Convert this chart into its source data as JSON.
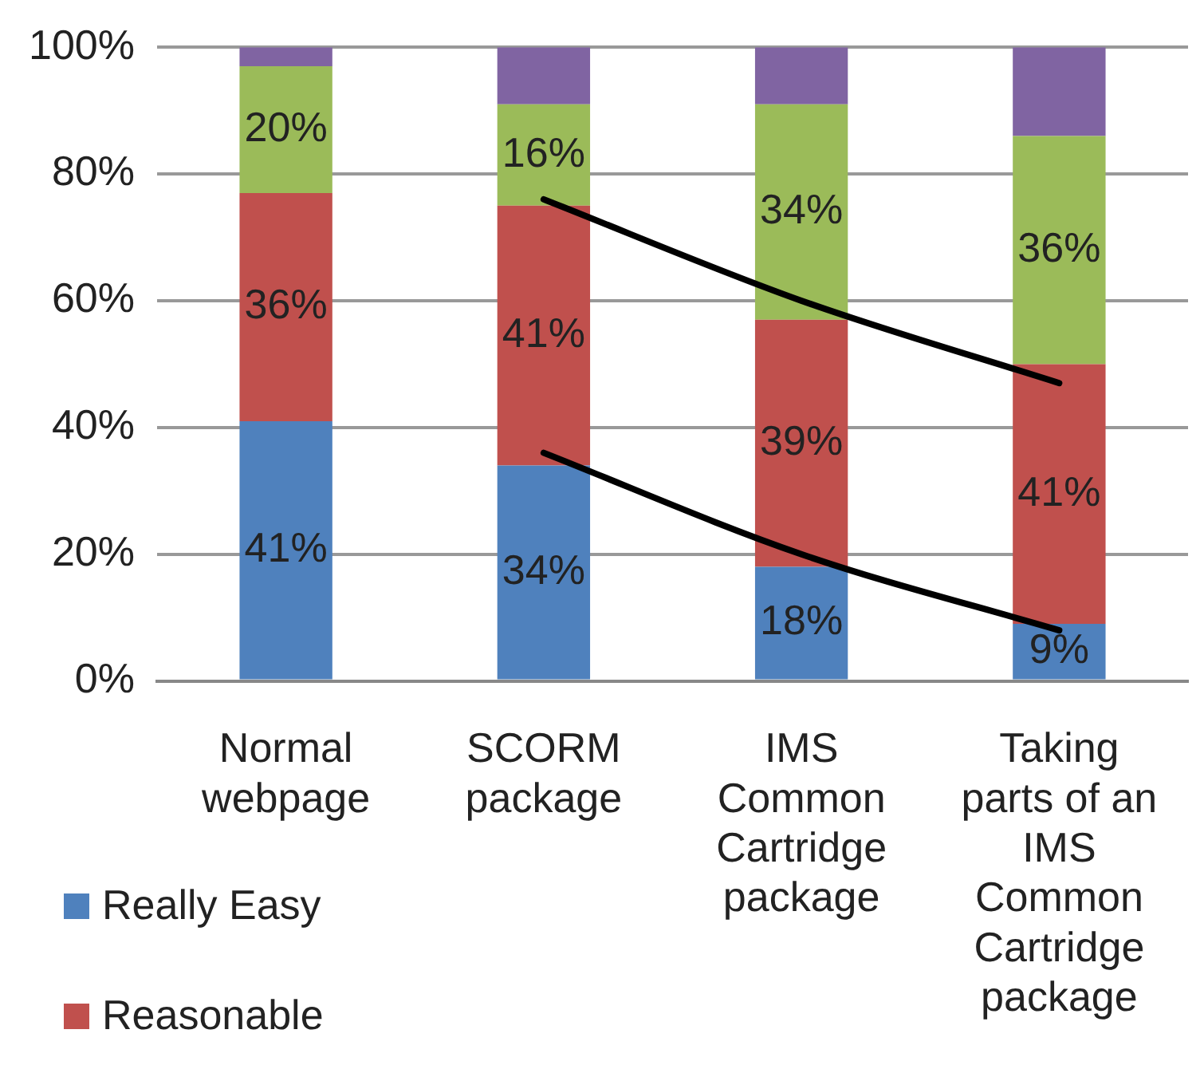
{
  "chart_data": {
    "type": "bar",
    "stacked": true,
    "categories": [
      "Normal webpage",
      "SCORM package",
      "IMS Common Cartridge package",
      "Taking parts of an IMS Common Cartridge package"
    ],
    "series": [
      {
        "name": "Really Easy",
        "color": "#4f81bd",
        "values": [
          41,
          34,
          18,
          9
        ],
        "value_labels": [
          "41%",
          "34%",
          "18%",
          "9%"
        ]
      },
      {
        "name": "Reasonable",
        "color": "#c0504d",
        "values": [
          36,
          41,
          39,
          41
        ],
        "value_labels": [
          "36%",
          "41%",
          "39%",
          "41%"
        ]
      },
      {
        "color": "#9bbb59",
        "values": [
          20,
          16,
          34,
          36
        ],
        "value_labels": [
          "20%",
          "16%",
          "34%",
          "36%"
        ]
      },
      {
        "color": "#8064a2",
        "values": [
          3,
          9,
          9,
          14
        ]
      },
      {
        "type": "line",
        "color": "#000000",
        "values": [
          null,
          76,
          60,
          47
        ]
      },
      {
        "type": "line",
        "color": "#000000",
        "values": [
          null,
          36,
          20,
          8
        ]
      }
    ],
    "ylim": [
      0,
      100
    ],
    "yticks": [
      {
        "value": 0,
        "label": "0%"
      },
      {
        "value": 20,
        "label": "20%"
      },
      {
        "value": 40,
        "label": "40%"
      },
      {
        "value": 60,
        "label": "60%"
      },
      {
        "value": 80,
        "label": "80%"
      },
      {
        "value": 100,
        "label": "100%"
      }
    ],
    "grid": "y",
    "legend": "bottom left",
    "marker": "none",
    "line_style": "solid"
  }
}
